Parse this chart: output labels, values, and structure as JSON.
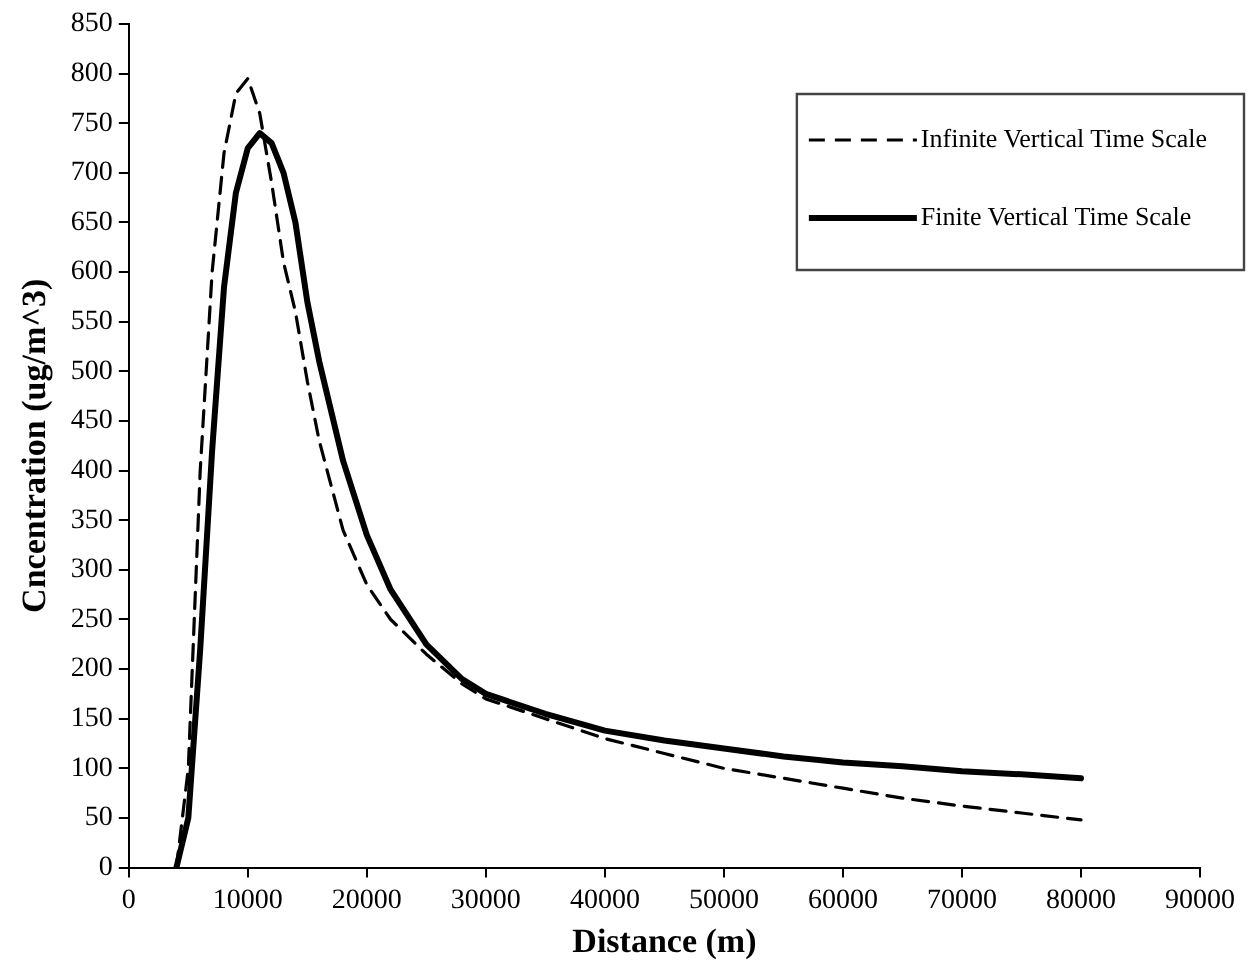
{
  "chart_data": {
    "type": "line",
    "xlabel": "Distance (m)",
    "ylabel": "Cncentration (ug/m^3)",
    "xlim": [
      0,
      90000
    ],
    "xticks": [
      0,
      10000,
      20000,
      30000,
      40000,
      50000,
      60000,
      70000,
      80000,
      90000
    ],
    "ylim": [
      0,
      850
    ],
    "yticks": [
      0,
      50,
      100,
      150,
      200,
      250,
      300,
      350,
      400,
      450,
      500,
      550,
      600,
      650,
      700,
      750,
      800,
      850
    ],
    "grid": false,
    "legend": "top right",
    "marker": "none",
    "series": [
      {
        "name": "Infinite Vertical Time Scale",
        "color": "#000000",
        "line_style": "dashed",
        "x": [
          4000,
          5000,
          6000,
          7000,
          8000,
          9000,
          10000,
          11000,
          12000,
          13000,
          14000,
          15000,
          16000,
          18000,
          20000,
          22000,
          25000,
          28000,
          30000,
          35000,
          40000,
          45000,
          50000,
          55000,
          60000,
          65000,
          70000,
          75000,
          80000
        ],
        "values": [
          0,
          100,
          400,
          600,
          720,
          780,
          795,
          760,
          690,
          610,
          560,
          490,
          430,
          340,
          285,
          250,
          215,
          185,
          170,
          150,
          130,
          115,
          100,
          90,
          80,
          70,
          62,
          55,
          48
        ]
      },
      {
        "name": "Finite Vertical Time Scale",
        "color": "#000000",
        "line_style": "solid",
        "x": [
          4000,
          5000,
          6000,
          7000,
          8000,
          9000,
          10000,
          11000,
          12000,
          13000,
          14000,
          15000,
          16000,
          18000,
          20000,
          22000,
          25000,
          28000,
          30000,
          35000,
          40000,
          45000,
          50000,
          55000,
          60000,
          65000,
          70000,
          75000,
          80000
        ],
        "values": [
          0,
          50,
          220,
          420,
          585,
          680,
          725,
          740,
          730,
          700,
          650,
          570,
          510,
          410,
          335,
          280,
          225,
          190,
          175,
          155,
          138,
          128,
          120,
          112,
          106,
          102,
          97,
          94,
          90
        ]
      }
    ]
  }
}
